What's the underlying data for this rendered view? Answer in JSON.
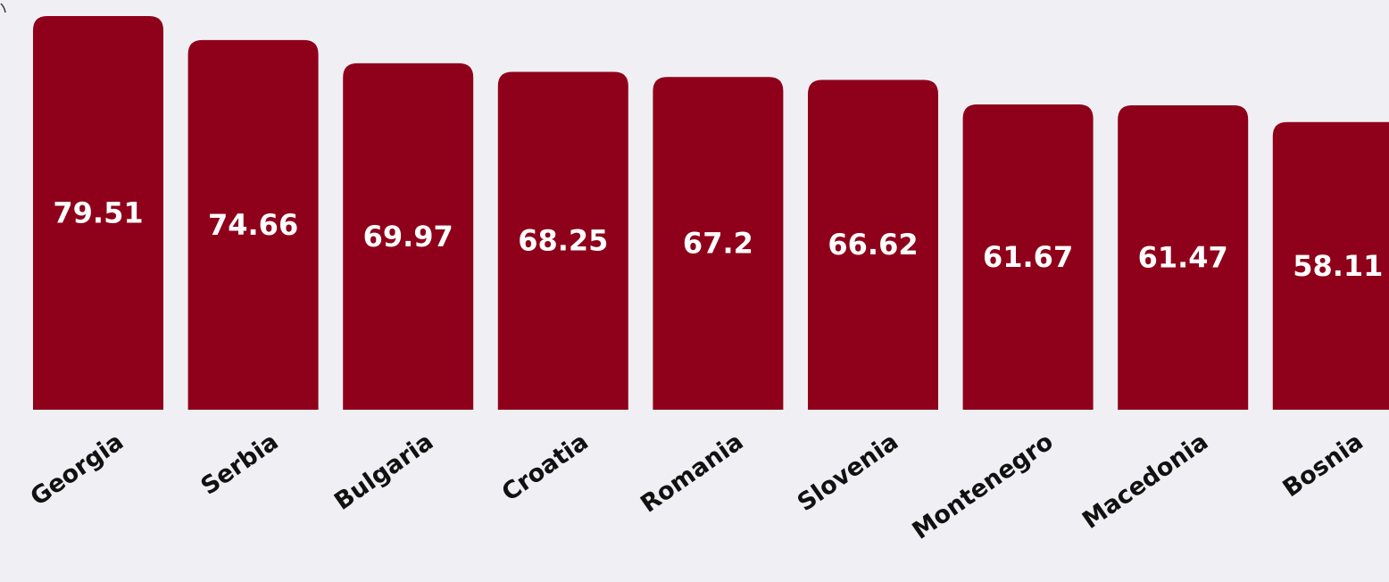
{
  "chart_data": {
    "type": "bar",
    "categories": [
      "Georgia",
      "Serbia",
      "Bulgaria",
      "Croatia",
      "Romania",
      "Slovenia",
      "Montenegro",
      "Macedonia",
      "Bosnia"
    ],
    "values": [
      79.51,
      74.66,
      69.97,
      68.25,
      67.2,
      66.62,
      61.67,
      61.47,
      58.11
    ],
    "value_labels": [
      "79.51",
      "74.66",
      "69.97",
      "68.25",
      "67.2",
      "66.62",
      "61.67",
      "61.47",
      "58.11"
    ],
    "title": "",
    "xlabel": "",
    "ylabel": "",
    "ylim": [
      0,
      80
    ],
    "grid": false,
    "legend": "none",
    "colors": {
      "bar": "#8f001a",
      "value_text": "#ffffff",
      "category_text": "#111111",
      "background": "#f0f0f4"
    }
  }
}
